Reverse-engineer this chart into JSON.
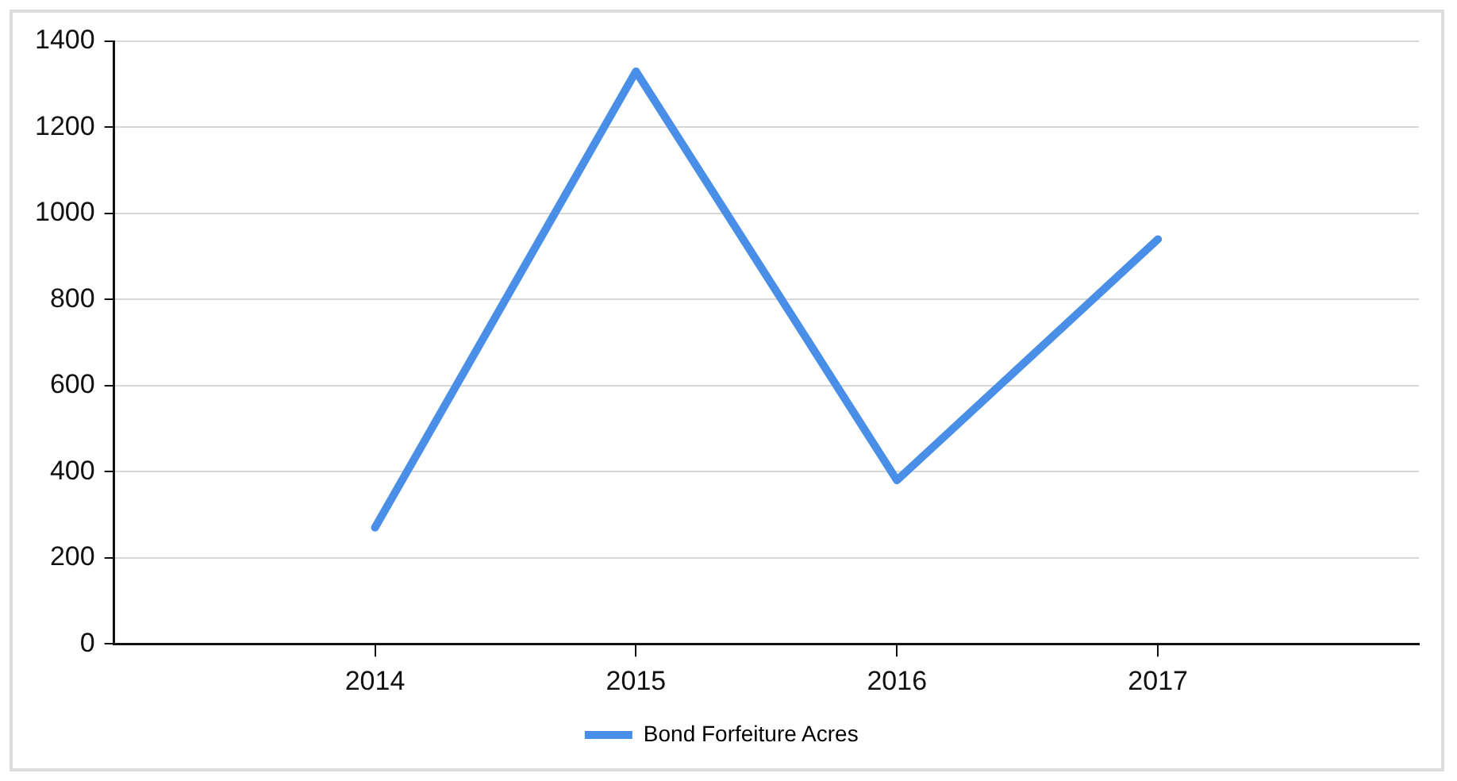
{
  "chart_data": {
    "type": "line",
    "categories": [
      "2014",
      "2015",
      "2016",
      "2017"
    ],
    "series": [
      {
        "name": "Bond Forfeiture Acres",
        "color": "#4a8fe7",
        "values": [
          270,
          1330,
          380,
          940
        ]
      }
    ],
    "ylim": [
      0,
      1400
    ],
    "yticks": [
      0,
      200,
      400,
      600,
      800,
      1000,
      1200,
      1400
    ],
    "grid": "y",
    "legend": "bottom",
    "marker": "none",
    "line_style": "solid"
  }
}
